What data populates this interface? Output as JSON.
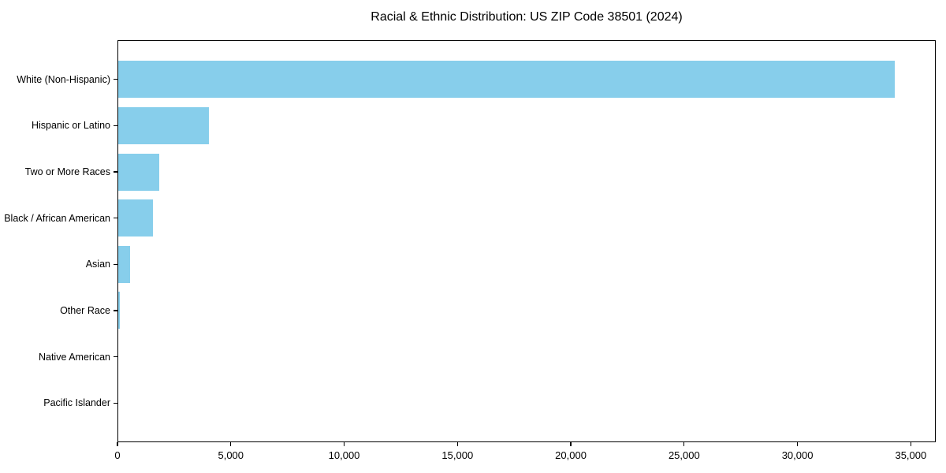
{
  "chart_data": {
    "type": "bar",
    "orientation": "horizontal",
    "title": "Racial & Ethnic Distribution: US ZIP Code 38501 (2024)",
    "categories": [
      "White (Non-Hispanic)",
      "Hispanic or Latino",
      "Two or More Races",
      "Black / African American",
      "Asian",
      "Other Race",
      "Native American",
      "Pacific Islander"
    ],
    "values": [
      34300,
      4040,
      1840,
      1570,
      560,
      120,
      30,
      10
    ],
    "xlabel": "",
    "ylabel": "",
    "xlim": [
      0,
      36100
    ],
    "x_ticks": [
      0,
      5000,
      10000,
      15000,
      20000,
      25000,
      30000,
      35000
    ],
    "x_tick_labels": [
      "0",
      "5,000",
      "10,000",
      "15,000",
      "20,000",
      "25,000",
      "30,000",
      "35,000"
    ],
    "bar_color": "#87CEEB",
    "axis_color": "#000000",
    "grid": false,
    "legend": null
  }
}
